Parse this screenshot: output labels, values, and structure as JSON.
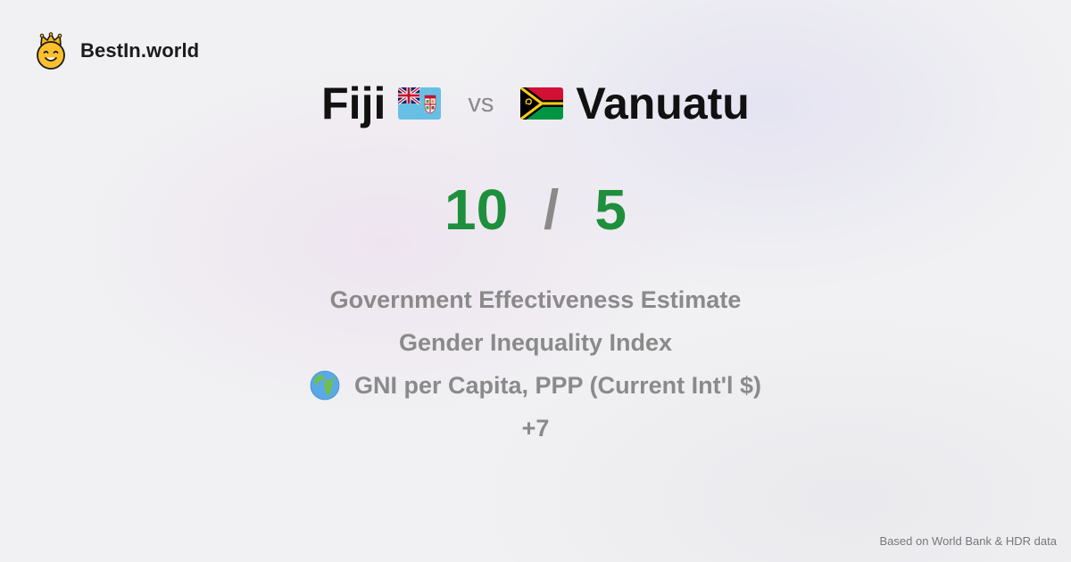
{
  "brand": {
    "name": "BestIn.world",
    "logo_icon": "crowned-smiley-icon"
  },
  "comparison": {
    "country_a": {
      "name": "Fiji",
      "flag_icon": "fiji-flag-icon",
      "score": "10"
    },
    "separator": "vs",
    "country_b": {
      "name": "Vanuatu",
      "flag_icon": "vanuatu-flag-icon",
      "score": "5"
    },
    "score_separator": "/"
  },
  "metrics": [
    {
      "label": "Government Effectiveness Estimate"
    },
    {
      "label": "Gender Inequality Index"
    },
    {
      "label": "GNI per Capita, PPP (Current Int'l $)",
      "icon": "globe-icon"
    },
    {
      "label": "+7"
    }
  ],
  "footer": {
    "source": "Based on World Bank & HDR data"
  },
  "colors": {
    "score_green": "#1e8f3c",
    "muted_gray": "#8a8a8a",
    "title_black": "#111111"
  }
}
